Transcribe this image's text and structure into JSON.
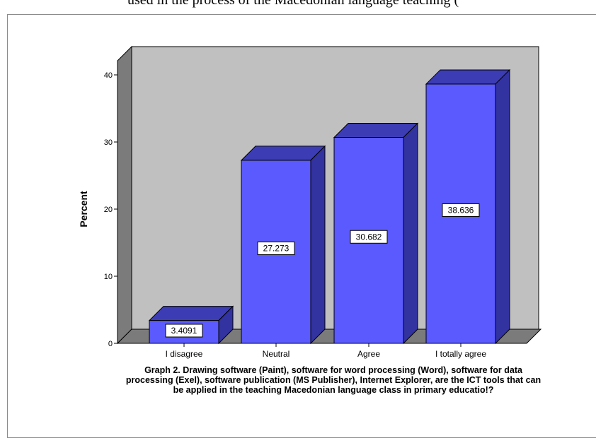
{
  "top_text": "used in the process of the Macedonian language teaching (",
  "chart_data": {
    "type": "bar",
    "categories": [
      "I disagree",
      "Neutral",
      "Agree",
      "I totally agree"
    ],
    "values": [
      3.4091,
      27.273,
      30.682,
      38.636
    ],
    "data_labels": [
      "3.4091",
      "27.273",
      "30.682",
      "38.636"
    ],
    "ylabel": "Percent",
    "xlabel": "",
    "ylim": [
      0,
      40
    ],
    "yticks": [
      0,
      10,
      20,
      30,
      40
    ],
    "title": "",
    "caption": "Graph 2. Drawing software (Paint), software for word processing (Word), software for data processing (Exel), software publication (MS Publisher), Internet Explorer, are the ICT tools that can be applied in the teaching Macedonian language class in primary educatio!?",
    "grid": false,
    "style": "3d",
    "colors": {
      "bar_front": "#5a5aff",
      "bar_top": "#3c3cb4",
      "bar_side": "#3232a0",
      "wall_back": "#c0c0c0",
      "wall_side": "#7b7b7b",
      "floor": "#7b7b7b"
    }
  }
}
